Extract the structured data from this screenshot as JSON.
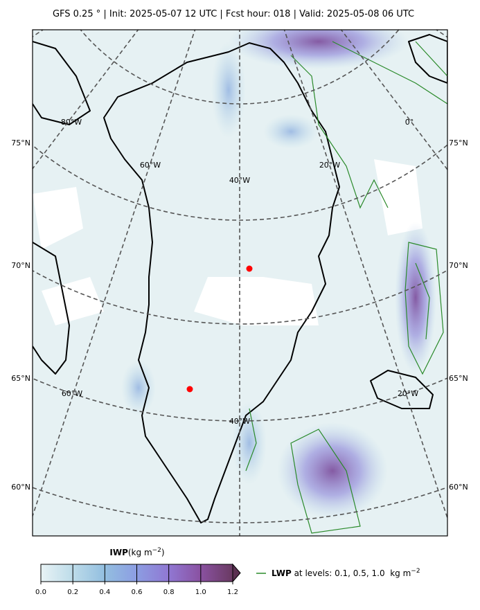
{
  "header": {
    "title": "GFS 0.25 °  |  Init: 2025-05-07 12 UTC  |  Fcst hour: 018  |  Valid: 2025-05-08 06 UTC"
  },
  "map": {
    "lat_labels_left": [
      "75°N",
      "70°N",
      "65°N",
      "60°N"
    ],
    "lat_labels_right": [
      "75°N",
      "70°N",
      "65°N",
      "60°N"
    ],
    "lon_labels": [
      "80°W",
      "60°W",
      "40°W",
      "20°W",
      "0°",
      "60°W",
      "40°W",
      "20°W"
    ]
  },
  "colorbar": {
    "label": "IWP",
    "unit": "(kg m",
    "unit_exp": "−2",
    "unit_close": ")",
    "ticks": [
      {
        "value": 0,
        "label": "0.0"
      },
      {
        "value": 0.2,
        "label": "0.2"
      },
      {
        "value": 0.4,
        "label": "0.4"
      },
      {
        "value": 0.6,
        "label": "0.6"
      },
      {
        "value": 0.8,
        "label": "0.8"
      },
      {
        "value": 1.0,
        "label": "1.0"
      },
      {
        "value": 1.2,
        "label": "1.2"
      }
    ]
  },
  "legend": {
    "label": "LWP",
    "text": " at levels: 0.1, 0.5, 1.0  kg m",
    "exp": "−2"
  }
}
